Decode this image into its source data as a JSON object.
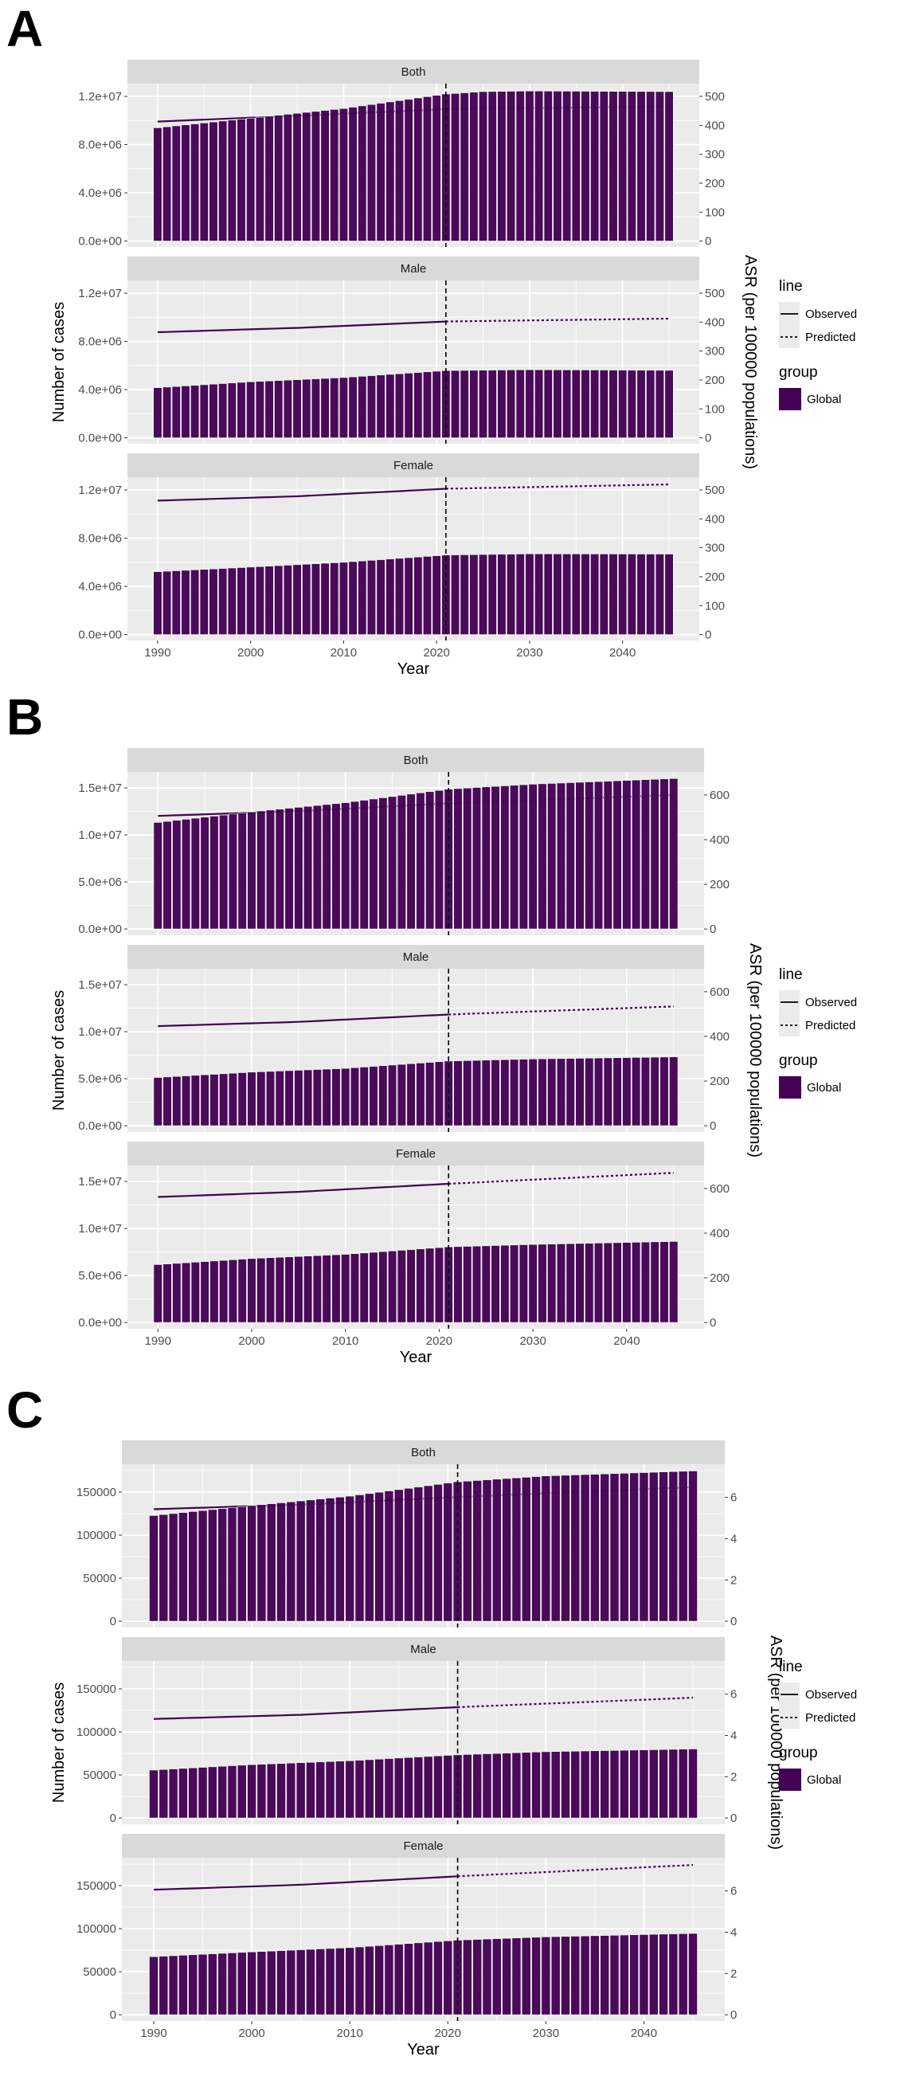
{
  "figure": {
    "xlabel": "Year",
    "ylabel_left": "Number of cases",
    "ylabel_right": "ASR (per 100000 populations)",
    "legend": {
      "line_title": "line",
      "line_items": [
        "Observed",
        "Predicted"
      ],
      "group_title": "group",
      "group_items": [
        "Global"
      ]
    },
    "colors": {
      "bar": "#440154",
      "line": "#440154",
      "panel_bg": "#EBEBEB",
      "strip_bg": "#D9D9D9",
      "grid": "#FFFFFF",
      "vline": "#000000"
    }
  },
  "chart_data": [
    {
      "panel": "A",
      "type": "bar",
      "x_range": [
        1990,
        2045
      ],
      "observed_end": 2021,
      "x_ticks": [
        1990,
        2000,
        2010,
        2020,
        2030,
        2040
      ],
      "ylim_left": [
        -490000,
        13060000
      ],
      "ylim_right": [
        -20.4,
        544
      ],
      "left_ticks": [
        0,
        4000000,
        8000000,
        12000000
      ],
      "left_tick_labels": [
        "0.0e+00",
        "4.0e+06",
        "8.0e+06",
        "1.2e+07"
      ],
      "right_ticks": [
        0,
        100,
        200,
        300,
        400,
        500
      ],
      "right_tick_labels": [
        "0",
        "100",
        "200",
        "300",
        "400",
        "500"
      ],
      "facets": [
        {
          "name": "Both",
          "cases_keypoints": [
            [
              1990,
              9400000
            ],
            [
              2000,
              10200000
            ],
            [
              2010,
              11000000
            ],
            [
              2021,
              12200000
            ],
            [
              2025,
              12400000
            ],
            [
              2030,
              12450000
            ],
            [
              2045,
              12400000
            ]
          ],
          "asr_keypoints": [
            [
              1990,
              413
            ],
            [
              2005,
              433
            ],
            [
              2021,
              456
            ],
            [
              2045,
              465
            ]
          ]
        },
        {
          "name": "Male",
          "cases_keypoints": [
            [
              1990,
              4160000
            ],
            [
              2000,
              4650000
            ],
            [
              2010,
              5000000
            ],
            [
              2021,
              5580000
            ],
            [
              2030,
              5650000
            ],
            [
              2045,
              5600000
            ]
          ],
          "asr_keypoints": [
            [
              1990,
              365
            ],
            [
              2005,
              380
            ],
            [
              2021,
              402
            ],
            [
              2045,
              412
            ]
          ]
        },
        {
          "name": "Female",
          "cases_keypoints": [
            [
              1990,
              5220000
            ],
            [
              2000,
              5600000
            ],
            [
              2010,
              6000000
            ],
            [
              2021,
              6600000
            ],
            [
              2030,
              6700000
            ],
            [
              2045,
              6680000
            ]
          ],
          "asr_keypoints": [
            [
              1990,
              463
            ],
            [
              2005,
              478
            ],
            [
              2021,
              504
            ],
            [
              2045,
              519
            ]
          ]
        }
      ]
    },
    {
      "panel": "B",
      "type": "bar",
      "x_range": [
        1990,
        2045
      ],
      "observed_end": 2021,
      "x_ticks": [
        1990,
        2000,
        2010,
        2020,
        2030,
        2040
      ],
      "ylim_left": [
        -670000,
        16700000
      ],
      "ylim_right": [
        -28,
        703
      ],
      "left_ticks": [
        0,
        5000000,
        10000000,
        15000000
      ],
      "left_tick_labels": [
        "0.0e+00",
        "5.0e+06",
        "1.0e+07",
        "1.5e+07"
      ],
      "right_ticks": [
        0,
        200,
        400,
        600
      ],
      "right_tick_labels": [
        "0",
        "200",
        "400",
        "600"
      ],
      "facets": [
        {
          "name": "Both",
          "cases_keypoints": [
            [
              1990,
              11330000
            ],
            [
              2000,
              12450000
            ],
            [
              2010,
              13430000
            ],
            [
              2021,
              14870000
            ],
            [
              2030,
              15400000
            ],
            [
              2045,
              16000000
            ]
          ],
          "asr_keypoints": [
            [
              1990,
              506
            ],
            [
              2005,
              528
            ],
            [
              2021,
              562
            ],
            [
              2045,
              600
            ]
          ]
        },
        {
          "name": "Male",
          "cases_keypoints": [
            [
              1990,
              5130000
            ],
            [
              2000,
              5700000
            ],
            [
              2010,
              6100000
            ],
            [
              2021,
              6880000
            ],
            [
              2030,
              7100000
            ],
            [
              2045,
              7320000
            ]
          ],
          "asr_keypoints": [
            [
              1990,
              446
            ],
            [
              2005,
              465
            ],
            [
              2021,
              498
            ],
            [
              2045,
              534
            ]
          ]
        },
        {
          "name": "Female",
          "cases_keypoints": [
            [
              1990,
              6160000
            ],
            [
              2000,
              6800000
            ],
            [
              2010,
              7250000
            ],
            [
              2021,
              8040000
            ],
            [
              2030,
              8300000
            ],
            [
              2045,
              8620000
            ]
          ],
          "asr_keypoints": [
            [
              1990,
              562
            ],
            [
              2005,
              585
            ],
            [
              2021,
              621
            ],
            [
              2045,
              670
            ]
          ]
        }
      ]
    },
    {
      "panel": "C",
      "type": "bar",
      "x_range": [
        1990,
        2045
      ],
      "observed_end": 2021,
      "x_ticks": [
        1990,
        2000,
        2010,
        2020,
        2030,
        2040
      ],
      "ylim_left": [
        -7300,
        182400
      ],
      "ylim_right": [
        -0.305,
        7.61
      ],
      "left_ticks": [
        0,
        50000,
        100000,
        150000
      ],
      "left_tick_labels": [
        "0",
        "50000",
        "100000",
        "150000"
      ],
      "right_ticks": [
        0,
        2,
        4,
        6
      ],
      "right_tick_labels": [
        "0",
        "2",
        "4",
        "6"
      ],
      "facets": [
        {
          "name": "Both",
          "cases_keypoints": [
            [
              1990,
              122800
            ],
            [
              2000,
              134300
            ],
            [
              2010,
              145300
            ],
            [
              2021,
              162000
            ],
            [
              2030,
              168800
            ],
            [
              2045,
              174600
            ]
          ],
          "asr_keypoints": [
            [
              1990,
              5.43
            ],
            [
              2005,
              5.65
            ],
            [
              2021,
              6.02
            ],
            [
              2045,
              6.5
            ]
          ]
        },
        {
          "name": "Male",
          "cases_keypoints": [
            [
              1990,
              55700
            ],
            [
              2000,
              62000
            ],
            [
              2010,
              66500
            ],
            [
              2021,
              73400
            ],
            [
              2030,
              77000
            ],
            [
              2045,
              80200
            ]
          ],
          "asr_keypoints": [
            [
              1990,
              4.8
            ],
            [
              2005,
              5.0
            ],
            [
              2021,
              5.37
            ],
            [
              2045,
              5.83
            ]
          ]
        },
        {
          "name": "Female",
          "cases_keypoints": [
            [
              1990,
              67500
            ],
            [
              2000,
              73000
            ],
            [
              2010,
              78000
            ],
            [
              2021,
              86700
            ],
            [
              2030,
              90500
            ],
            [
              2045,
              94500
            ]
          ],
          "asr_keypoints": [
            [
              1990,
              6.06
            ],
            [
              2005,
              6.3
            ],
            [
              2021,
              6.71
            ],
            [
              2045,
              7.26
            ]
          ]
        }
      ]
    }
  ]
}
